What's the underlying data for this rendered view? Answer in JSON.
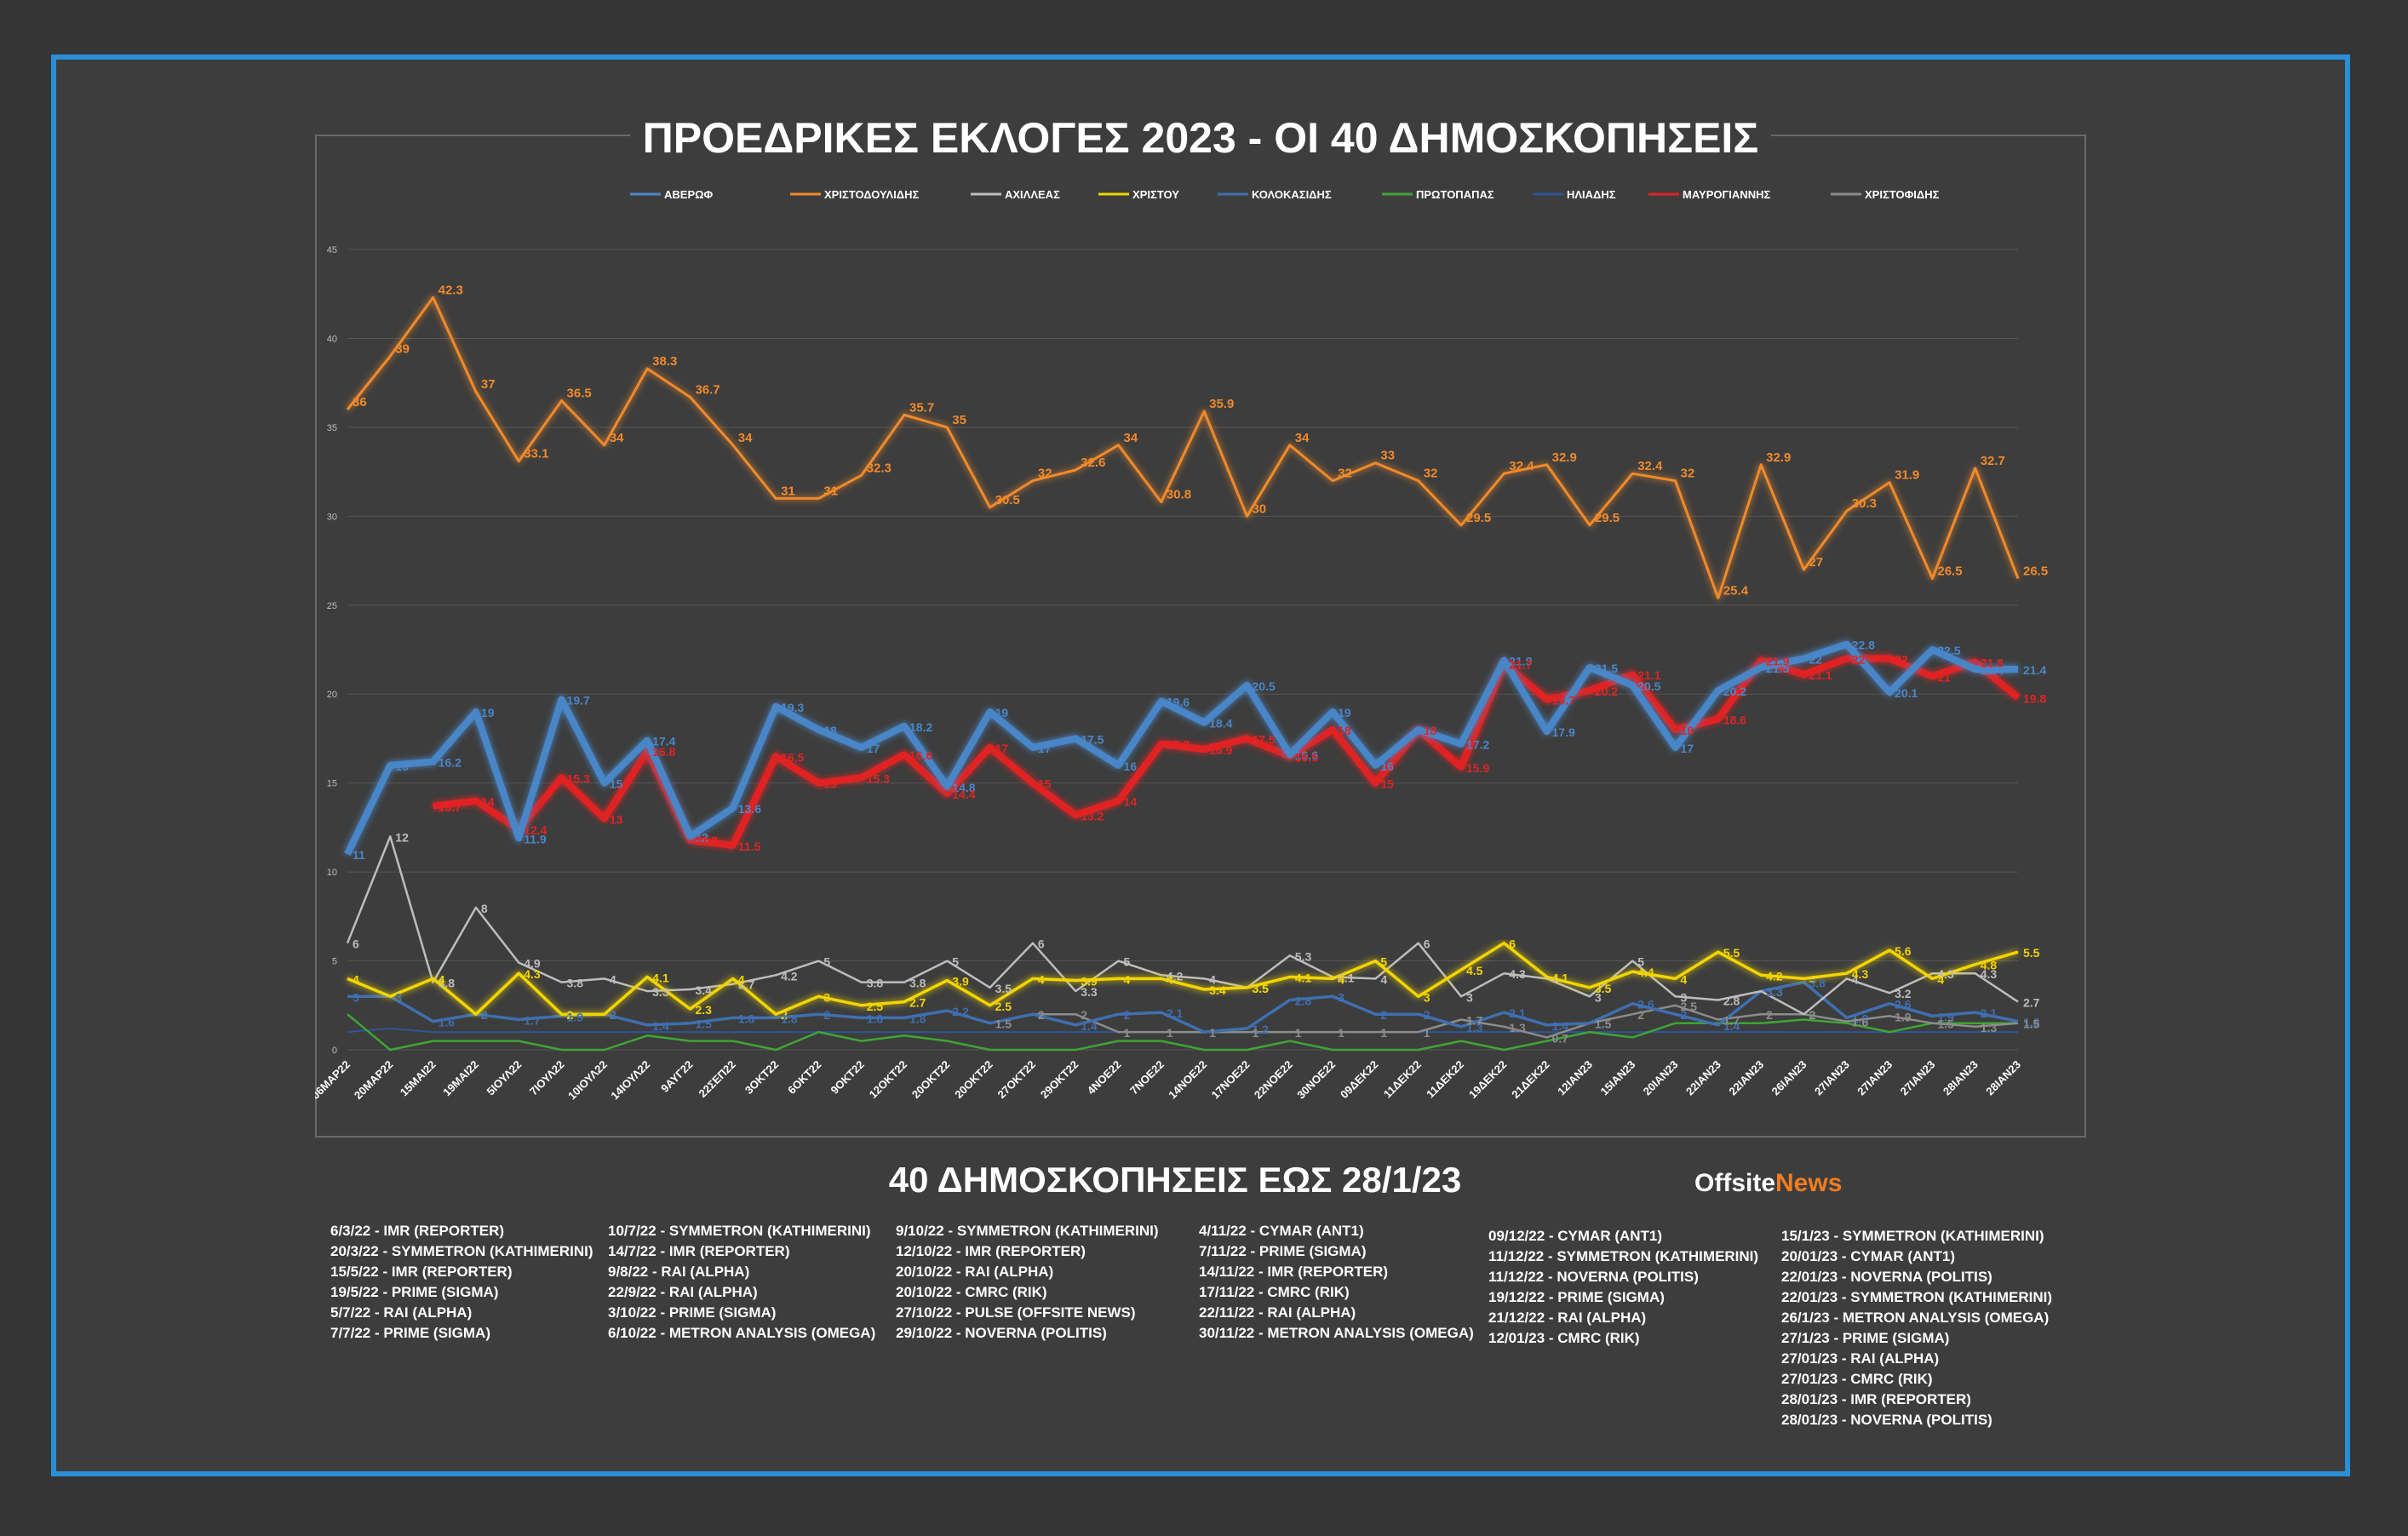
{
  "title": "ΠΡΟΕΔΡΙΚΕΣ ΕΚΛΟΓΕΣ 2023 - ΟΙ 40 ΔΗΜΟΣΚΟΠΗΣΕΙΣ",
  "subtitle": "40 ΔΗΜΟΣΚΟΠΗΣΕΙΣ ΕΩΣ 28/1/23",
  "brand": {
    "part1": "Offsite",
    "part2": "News"
  },
  "chart_data": {
    "type": "line",
    "title": "ΠΡΟΕΔΡΙΚΕΣ ΕΚΛΟΓΕΣ 2023 - ΟΙ 40 ΔΗΜΟΣΚΟΠΗΣΕΙΣ",
    "ylim": [
      0,
      45
    ],
    "yticks": [
      0,
      5,
      10,
      15,
      20,
      25,
      30,
      35,
      40,
      45
    ],
    "grid": true,
    "legend_position": "top",
    "categories": [
      "06ΜΑΡ22",
      "20ΜΑΡ22",
      "15ΜΑΙ22",
      "19ΜΑΙ22",
      "5ΙΟΥΛ22",
      "7ΙΟΥΛ22",
      "10ΙΟΥΛ22",
      "14ΙΟΥΛ22",
      "9ΑΥΓ22",
      "22ΣΕΠ22",
      "3ΟΚΤ22",
      "6ΟΚΤ22",
      "9ΟΚΤ22",
      "12ΟΚΤ22",
      "20ΟΚΤ22",
      "20ΟΚΤ22",
      "27ΟΚΤ22",
      "29ΟΚΤ22",
      "4ΝΟΕ22",
      "7ΝΟΕ22",
      "14ΝΟΕ22",
      "17ΝΟΕ22",
      "22ΝΟΕ22",
      "30ΝΟΕ22",
      "09ΔΕΚ22",
      "11ΔΕΚ22",
      "11ΔΕΚ22",
      "19ΔΕΚ22",
      "21ΔΕΚ22",
      "12ΙΑΝ23",
      "15ΙΑΝ23",
      "20ΙΑΝ23",
      "22ΙΑΝ23",
      "22ΙΑΝ23",
      "26ΙΑΝ23",
      "27ΙΑΝ23",
      "27ΙΑΝ23",
      "27ΙΑΝ23",
      "28ΙΑΝ23",
      "28ΙΑΝ23"
    ],
    "series": [
      {
        "name": "ΑΒΕΡΩΦ",
        "color": "#4a86c8",
        "labels": true,
        "values": [
          11,
          16,
          16.2,
          19,
          11.9,
          19.7,
          15,
          17.4,
          12,
          13.6,
          19.3,
          18,
          17,
          18.2,
          14.8,
          19,
          17,
          17.5,
          16,
          19.6,
          18.4,
          20.5,
          16.6,
          19,
          16,
          18,
          17.2,
          21.9,
          17.9,
          21.5,
          20.5,
          17,
          20.2,
          21.5,
          22,
          22.8,
          20.1,
          22.5,
          21.4,
          21.4
        ]
      },
      {
        "name": "ΧΡΙΣΤΟΔΟΥΛΙΔΗΣ",
        "color": "#f08a2c",
        "labels": true,
        "values": [
          36,
          39,
          42.3,
          37,
          33.1,
          36.5,
          34,
          38.3,
          36.7,
          34,
          31,
          31,
          32.3,
          35.7,
          35,
          30.5,
          32,
          32.6,
          34,
          30.8,
          35.9,
          30,
          34,
          32,
          33,
          32,
          29.5,
          32.4,
          32.9,
          29.5,
          32.4,
          32,
          25.4,
          32.9,
          27,
          30.3,
          31.9,
          26.5,
          32.7,
          26.5
        ]
      },
      {
        "name": "ΑΧΙΛΛΕΑΣ",
        "color": "#bdbdbd",
        "labels": true,
        "values": [
          6,
          12,
          3.8,
          8,
          4.9,
          3.8,
          4,
          3.3,
          3.4,
          3.7,
          4.2,
          5,
          3.8,
          3.8,
          5,
          3.5,
          6,
          3.3,
          5,
          4.2,
          4,
          3.5,
          5.3,
          4.1,
          4,
          6,
          3,
          4.3,
          4,
          3,
          5,
          3,
          2.8,
          3.3,
          2,
          4,
          3.2,
          4.3,
          4.3,
          2.7
        ]
      },
      {
        "name": "ΧΡΙΣΤΟΥ",
        "color": "#f2d500",
        "labels": true,
        "values": [
          4,
          3,
          4,
          2,
          4.3,
          2,
          2,
          4.1,
          2.3,
          4,
          2,
          3,
          2.5,
          2.7,
          3.9,
          2.5,
          4,
          3.9,
          4,
          4,
          3.4,
          3.5,
          4.1,
          4,
          5,
          3,
          4.5,
          6,
          4.1,
          3.5,
          4.4,
          4,
          5.5,
          4.2,
          4,
          4.3,
          5.6,
          4,
          4.8,
          5.5
        ]
      },
      {
        "name": "ΚΟΛΟΚΑΣΙΔΗΣ",
        "color": "#3f6fb0",
        "labels": true,
        "values": [
          3,
          3,
          1.6,
          2,
          1.7,
          1.9,
          2,
          1.4,
          1.5,
          1.8,
          1.8,
          2,
          1.8,
          1.8,
          2.2,
          1.5,
          2,
          1.4,
          2,
          2.1,
          1,
          1.2,
          2.8,
          3,
          2,
          2,
          1.3,
          2.1,
          1.4,
          1.5,
          2.6,
          2,
          1.4,
          3.3,
          3.8,
          1.8,
          2.6,
          1.9,
          2.1,
          1.6
        ]
      },
      {
        "name": "ΠΡΩΤΟΠΑΠΑΣ",
        "color": "#3fa535",
        "labels": false,
        "values": [
          2,
          0,
          0.5,
          0.5,
          0.5,
          0,
          0,
          0.8,
          0.5,
          0.5,
          0,
          1,
          0.5,
          0.8,
          0.5,
          0,
          0,
          0,
          0.5,
          0.5,
          0,
          0,
          0.5,
          0,
          0,
          0,
          0.5,
          0,
          0.5,
          1,
          0.7,
          1.5,
          1.5,
          1.5,
          1.7,
          1.5,
          1,
          1.5,
          1.5,
          1.5
        ]
      },
      {
        "name": "ΗΛΙΑΔΗΣ",
        "color": "#2f5597",
        "labels": false,
        "values": [
          1,
          1.2,
          1,
          1,
          1,
          1,
          1,
          1,
          1,
          1,
          1,
          1,
          1,
          1,
          1,
          1,
          1,
          1,
          1,
          1,
          1,
          1,
          1,
          1,
          1,
          1,
          1,
          1,
          1,
          1,
          1,
          1,
          1,
          1,
          1,
          1,
          1,
          1,
          1,
          1
        ]
      },
      {
        "name": "ΜΑΥΡΟΓΙΑΝΝΗΣ",
        "color": "#e02424",
        "labels": true,
        "values": [
          null,
          null,
          13.7,
          14,
          12.4,
          15.3,
          13,
          16.8,
          11.8,
          11.5,
          16.5,
          15,
          15.3,
          16.6,
          14.4,
          17,
          15,
          13.2,
          14,
          17.2,
          16.9,
          17.5,
          16.5,
          18,
          15,
          18,
          15.9,
          21.7,
          19.7,
          20.2,
          21.1,
          18,
          18.6,
          21.9,
          21.1,
          22,
          22,
          21,
          21.8,
          19.8
        ]
      },
      {
        "name": "ΧΡΙΣΤΟΦΙΔΗΣ",
        "color": "#8c8c8c",
        "labels": true,
        "values": [
          null,
          null,
          null,
          null,
          null,
          null,
          null,
          null,
          null,
          null,
          null,
          null,
          null,
          null,
          null,
          1.5,
          2,
          2,
          1,
          1,
          1,
          1,
          1,
          1,
          1,
          1,
          1.7,
          1.3,
          0.7,
          1.5,
          2,
          2.5,
          1.7,
          2,
          2,
          1.6,
          1.9,
          1.5,
          1.3,
          1.5
        ]
      }
    ]
  },
  "polls": [
    [
      "6/3/22 - IMR (REPORTER)",
      "20/3/22 - SYMMETRON (KATHIMERINI)",
      "15/5/22 - IMR (REPORTER)",
      "19/5/22 - PRIME (SIGMA)",
      "5/7/22 - RAI (ALPHA)",
      "7/7/22 - PRIME (SIGMA)"
    ],
    [
      "10/7/22 - SYMMETRON (KATHIMERINI)",
      "14/7/22 - IMR (REPORTER)",
      "9/8/22 - RAI (ALPHA)",
      "22/9/22 - RAI (ALPHA)",
      "3/10/22 - PRIME (SIGMA)",
      "6/10/22 - METRON ANALYSIS (OMEGA)"
    ],
    [
      "9/10/22 - SYMMETRON (KATHIMERINI)",
      "12/10/22 - IMR (REPORTER)",
      "20/10/22 - RAI (ALPHA)",
      "20/10/22 - CMRC (RIK)",
      "27/10/22 - PULSE (OFFSITE NEWS)",
      "29/10/22 - NOVERNA (POLITIS)"
    ],
    [
      "4/11/22 - CYMAR (ANT1)",
      "7/11/22 - PRIME (SIGMA)",
      "14/11/22 - IMR (REPORTER)",
      "17/11/22 - CMRC (RIK)",
      "22/11/22 - RAI (ALPHA)",
      "30/11/22 - METRON ANALYSIS (OMEGA)"
    ],
    [
      "09/12/22 - CYMAR (ANT1)",
      "11/12/22 - SYMMETRON (KATHIMERINI)",
      "11/12/22 - NOVERNA (POLITIS)",
      "19/12/22 - PRIME (SIGMA)",
      "21/12/22 - RAI (ALPHA)",
      "12/01/23 - CMRC (RIK)"
    ],
    [
      "15/1/23 - SYMMETRON (KATHIMERINI)",
      "20/01/23 - CYMAR (ANT1)",
      "22/01/23 - NOVERNA (POLITIS)",
      "22/01/23 - SYMMETRON (KATHIMERINI)",
      "26/1/23 - METRON ANALYSIS (OMEGA)",
      "27/1/23 - PRIME (SIGMA)",
      "27/01/23 - RAI (ALPHA)",
      "27/01/23 - CMRC (RIK)",
      "28/01/23 - IMR (REPORTER)",
      "28/01/23 - NOVERNA (POLITIS)"
    ]
  ]
}
